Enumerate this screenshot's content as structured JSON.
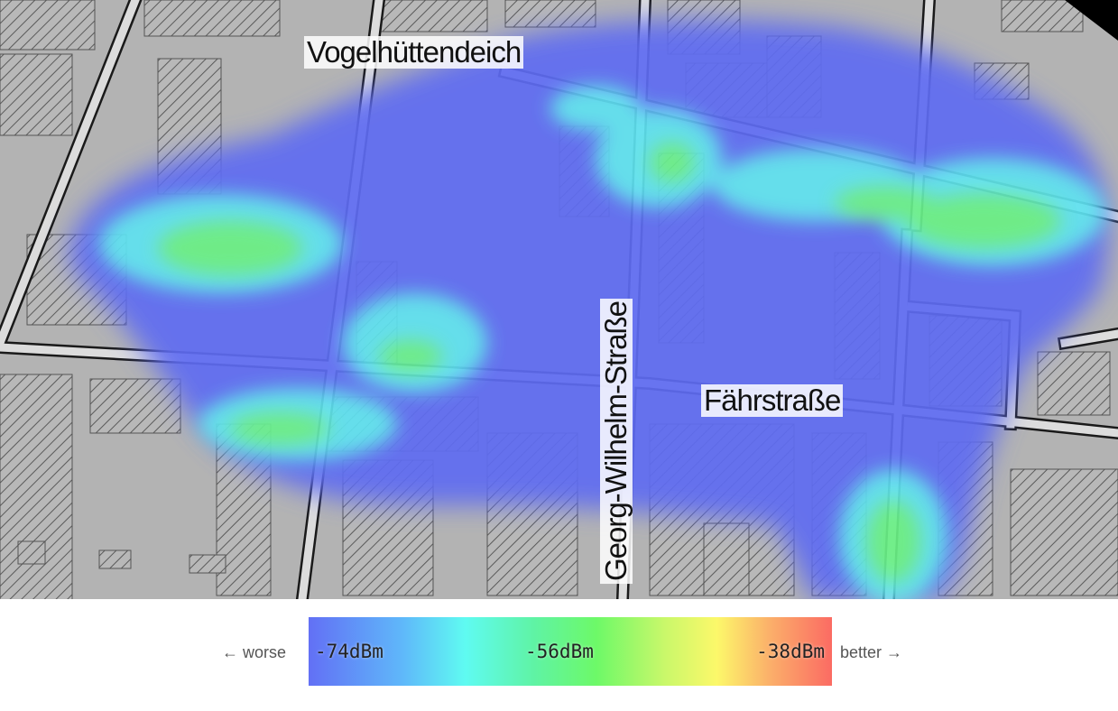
{
  "map": {
    "streets": {
      "vogelhuettendeich": "Vogelhüttendeich",
      "faehrstrasse": "Fährstraße",
      "georg_wilhelm_strasse": "Georg-Wilhelm-Straße"
    },
    "colors": {
      "background": "#b3b3b3",
      "road_fill": "#dcdcdc",
      "road_casing": "#1a1a1a",
      "building_hatch": "#555555",
      "coverage_weak": "#6270f5",
      "coverage_medium": "#5ffbf1",
      "coverage_strong": "#6df968"
    }
  },
  "legend": {
    "worse_label": "← worse",
    "better_label": "better →",
    "min_value": "-74dBm",
    "mid_value": "-56dBm",
    "max_value": "-38dBm"
  }
}
